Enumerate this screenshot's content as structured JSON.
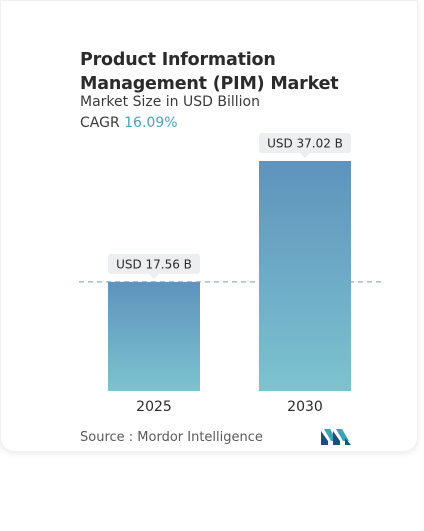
{
  "chart_data": {
    "type": "bar",
    "title": "Product Information Management (PIM) Market",
    "subtitle": "Market Size in USD Billion",
    "cagr_label": "CAGR",
    "cagr_value": "16.09%",
    "categories": [
      "2025",
      "2030"
    ],
    "values": [
      17.56,
      37.02
    ],
    "value_labels": [
      "USD 17.56 B",
      "USD 37.02 B"
    ],
    "ylim": [
      0,
      37.02
    ],
    "grid": false,
    "reference_line": "dashed at 2025 value",
    "colors": {
      "bar_top": "#5e93bd",
      "bar_bottom": "#7cc3cf",
      "dashed_line": "#8fb3c4",
      "label_bg": "#eceef0",
      "accent": "#4aa3c0"
    }
  },
  "source": "Source :  Mordor Intelligence",
  "logo_icon": "mordor-intelligence-logo-icon"
}
